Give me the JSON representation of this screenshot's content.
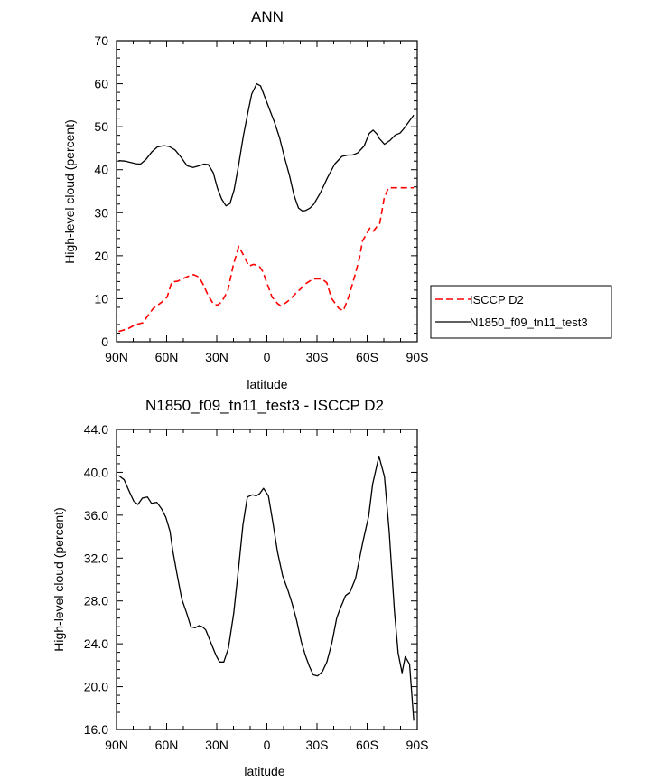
{
  "chart_data": [
    {
      "type": "line",
      "title": "ANN",
      "xlabel": "latitude",
      "ylabel": "High-level cloud (percent)",
      "xlim": [
        90,
        -90
      ],
      "ylim": [
        0,
        70
      ],
      "x_ticks": [
        90,
        60,
        30,
        0,
        -30,
        -60,
        -90
      ],
      "x_tick_labels": [
        "90N",
        "60N",
        "30N",
        "0",
        "30S",
        "60S",
        "90S"
      ],
      "y_ticks": [
        0,
        10,
        20,
        30,
        40,
        50,
        60,
        70
      ],
      "y_tick_labels": [
        "0",
        "10",
        "20",
        "30",
        "40",
        "50",
        "60",
        "70"
      ],
      "legend_position": "right",
      "series": [
        {
          "name": "ISCCP D2",
          "color": "#ff0000",
          "dash": "dashed",
          "x": [
            88.7,
            83.2,
            78.6,
            74.3,
            71.9,
            68.1,
            62.9,
            59.7,
            56.9,
            53.2,
            51.3,
            45.9,
            43.8,
            40.6,
            38.2,
            35.4,
            32.1,
            29.6,
            27.1,
            23.4,
            20.1,
            16.8,
            13.2,
            10.8,
            7.9,
            4.6,
            2.4,
            0.2,
            -3.1,
            -6.4,
            -8.4,
            -12.2,
            -15.3,
            -17.4,
            -20.2,
            -23.6,
            -27.7,
            -30.1,
            -32.9,
            -35.9,
            -38.7,
            -43.2,
            -45.8,
            -49.2,
            -52.6,
            -55.4,
            -57.2,
            -61.6,
            -63.8,
            -65.7,
            -67.6,
            -70.1,
            -72.7,
            -75.3,
            -78.1,
            -80.7,
            -82.6,
            -84.9,
            -87.9
          ],
          "values": [
            2.4,
            3.0,
            4.0,
            4.4,
            5.7,
            7.7,
            9.2,
            10.4,
            13.9,
            14.1,
            14.5,
            15.4,
            15.6,
            15.0,
            13.4,
            11.0,
            8.8,
            8.5,
            9.3,
            11.8,
            17.8,
            22.2,
            19.5,
            17.6,
            18.0,
            17.6,
            16.3,
            13.9,
            10.4,
            8.9,
            8.3,
            9.3,
            10.4,
            11.3,
            12.3,
            13.6,
            14.6,
            14.6,
            14.6,
            13.7,
            10.1,
            7.7,
            7.2,
            10.7,
            15.3,
            19.4,
            23.4,
            26.4,
            25.7,
            26.7,
            27.6,
            33.2,
            35.8,
            35.8,
            35.8,
            35.8,
            35.8,
            35.8,
            35.8
          ]
        },
        {
          "name": "N1850_f09_tn11_test3",
          "color": "#000000",
          "dash": "solid",
          "x": [
            88.7,
            84.9,
            78.3,
            75.6,
            72.6,
            68.7,
            65.5,
            61.6,
            58.5,
            55.0,
            51.4,
            47.8,
            44.2,
            40.5,
            37.6,
            35.1,
            32.1,
            29.5,
            27.1,
            24.5,
            22.1,
            19.6,
            16.9,
            14.1,
            11.4,
            9.1,
            6.1,
            3.8,
            0.2,
            -2.1,
            -4.6,
            -7.6,
            -10.3,
            -13.6,
            -16.2,
            -18.9,
            -21.3,
            -23.1,
            -25.9,
            -28.1,
            -32.0,
            -36.2,
            -40.6,
            -44.9,
            -48.6,
            -51.2,
            -54.3,
            -58.2,
            -61.2,
            -63.6,
            -66.1,
            -67.2,
            -70.4,
            -73.6,
            -76.9,
            -79.6,
            -81.7,
            -84.7,
            -87.9
          ],
          "values": [
            42.1,
            42.0,
            41.4,
            41.3,
            42.3,
            44.2,
            45.3,
            45.6,
            45.4,
            44.6,
            42.9,
            40.9,
            40.5,
            40.9,
            41.3,
            41.2,
            39.3,
            35.6,
            33.2,
            31.6,
            32.1,
            35.3,
            41.1,
            47.8,
            53.2,
            57.6,
            60.0,
            59.5,
            55.9,
            53.5,
            51.0,
            47.4,
            43.2,
            38.5,
            34.1,
            31.1,
            30.4,
            30.5,
            31.1,
            32.0,
            34.6,
            38.1,
            41.3,
            43.1,
            43.4,
            43.4,
            43.9,
            45.5,
            48.4,
            49.2,
            48.2,
            47.3,
            45.9,
            46.8,
            48.1,
            48.5,
            49.4,
            51.0,
            52.7
          ]
        }
      ]
    },
    {
      "type": "line",
      "title": "N1850_f09_tn11_test3 - ISCCP D2",
      "xlabel": "latitude",
      "ylabel": "High-level cloud (percent)",
      "xlim": [
        90,
        -90
      ],
      "ylim": [
        16,
        44
      ],
      "x_ticks": [
        90,
        60,
        30,
        0,
        -30,
        -60,
        -90
      ],
      "x_tick_labels": [
        "90N",
        "60N",
        "30N",
        "0",
        "30S",
        "60S",
        "90S"
      ],
      "y_ticks": [
        16,
        20,
        24,
        28,
        32,
        36,
        40,
        44
      ],
      "y_tick_labels": [
        "16.0",
        "20.0",
        "24.0",
        "28.0",
        "32.0",
        "36.0",
        "40.0",
        "44.0"
      ],
      "series": [
        {
          "name": "N1850_f09_tn11_test3 - ISCCP D2",
          "color": "#000000",
          "dash": "solid",
          "x": [
            88.7,
            85.4,
            82.6,
            79.7,
            77.2,
            74.5,
            71.5,
            69.0,
            65.9,
            63.1,
            60.5,
            58.0,
            56.3,
            53.8,
            51.0,
            47.9,
            45.5,
            43.0,
            40.5,
            38.7,
            36.6,
            33.8,
            30.4,
            28.3,
            25.8,
            23.0,
            19.9,
            16.9,
            14.3,
            11.7,
            8.6,
            6.3,
            4.4,
            2.0,
            -0.9,
            -3.6,
            -6.3,
            -9.5,
            -12.4,
            -15.0,
            -17.8,
            -20.6,
            -23.1,
            -25.4,
            -27.8,
            -30.3,
            -33.2,
            -35.9,
            -38.9,
            -41.8,
            -43.9,
            -45.8,
            -47.1,
            -49.7,
            -53.1,
            -57.3,
            -60.9,
            -63.3,
            -67.1,
            -70.4,
            -73.2,
            -76.4,
            -78.6,
            -80.9,
            -82.8,
            -85.4,
            -87.9
          ],
          "values": [
            39.7,
            39.3,
            38.3,
            37.3,
            37.0,
            37.6,
            37.7,
            37.1,
            37.2,
            36.6,
            35.8,
            34.5,
            32.7,
            30.5,
            28.2,
            26.8,
            25.6,
            25.5,
            25.7,
            25.6,
            25.3,
            24.2,
            22.9,
            22.3,
            22.3,
            23.6,
            26.8,
            31.1,
            35.1,
            37.7,
            37.9,
            37.8,
            38.0,
            38.5,
            37.8,
            35.3,
            32.6,
            30.3,
            29.1,
            27.8,
            26.2,
            24.2,
            22.9,
            21.9,
            21.1,
            21.0,
            21.4,
            22.3,
            24.1,
            26.4,
            27.3,
            28.0,
            28.5,
            28.8,
            30.1,
            33.4,
            35.9,
            38.9,
            41.5,
            39.6,
            34.5,
            27.0,
            23.1,
            21.3,
            22.8,
            22.1,
            16.9
          ]
        }
      ]
    }
  ]
}
